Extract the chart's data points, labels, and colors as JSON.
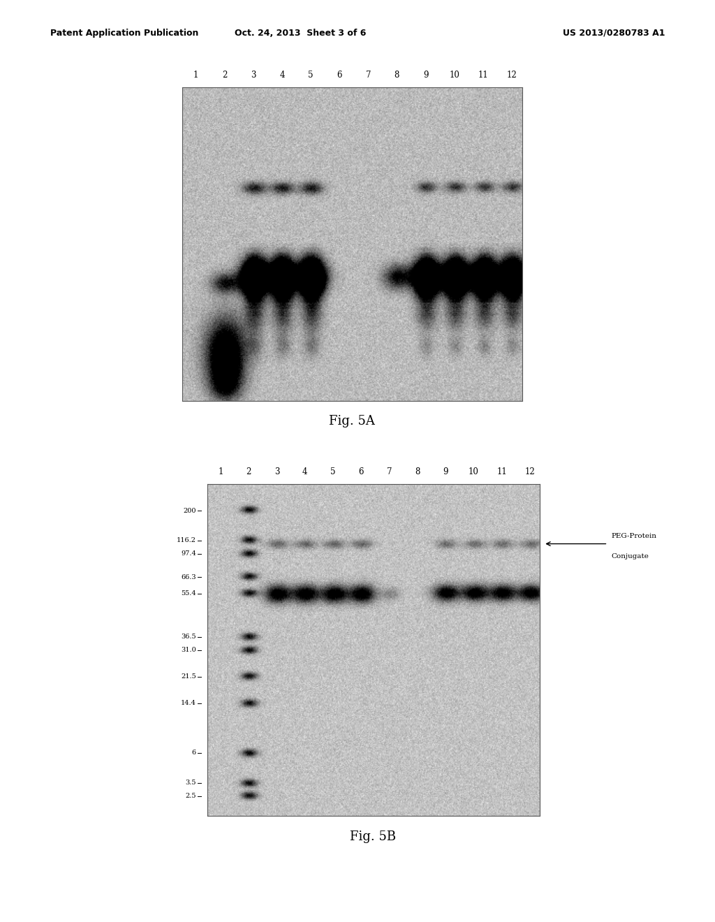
{
  "page_title_left": "Patent Application Publication",
  "page_title_center": "Oct. 24, 2013  Sheet 3 of 6",
  "page_title_right": "US 2013/0280783 A1",
  "fig5a_caption": "Fig. 5A",
  "fig5b_caption": "Fig. 5B",
  "lane_labels": [
    "1",
    "2",
    "3",
    "4",
    "5",
    "6",
    "7",
    "8",
    "9",
    "10",
    "11",
    "12"
  ],
  "mw_markers_5b": [
    "200",
    "116.2",
    "97.4",
    "66.3",
    "55.4",
    "36.5",
    "31.0",
    "21.5",
    "14.4",
    "6",
    "3.5",
    "2.5"
  ],
  "annotation_text_line1": "PEG-Protein",
  "annotation_text_line2": "Conjugate",
  "background_color": "#ffffff",
  "header_font_size": 9,
  "caption_font_size": 13,
  "lane_label_font_size": 8.5,
  "mw_label_font_size": 7
}
